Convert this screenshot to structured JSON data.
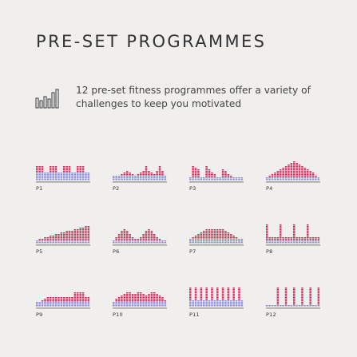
{
  "title": "PRE-SET PROGRAMMES",
  "intro": "12 pre-set fitness programmes offer a variety of challenges to keep you motivated",
  "icon": "bar-chart-icon",
  "colors": {
    "background": "#f0efed",
    "intensity": "#c1355a",
    "base": "#8c92c9",
    "baseline": "#555555"
  },
  "programmes": [
    {
      "label": "P1",
      "base_levels": [
        5,
        5,
        5,
        5,
        5,
        5,
        5,
        5,
        5,
        5,
        5,
        5,
        5,
        5,
        5,
        5,
        5,
        5,
        5,
        5
      ],
      "levels": [
        9,
        9,
        9,
        5,
        5,
        9,
        9,
        9,
        5,
        5,
        9,
        9,
        9,
        5,
        5,
        9,
        9,
        9,
        5,
        5
      ]
    },
    {
      "label": "P2",
      "base_levels": [
        3,
        3,
        3,
        3,
        3,
        3,
        3,
        3,
        3,
        3,
        3,
        3,
        3,
        3,
        3,
        3,
        3,
        3,
        3,
        3
      ],
      "levels": [
        3,
        3,
        3,
        4,
        5,
        6,
        5,
        4,
        3,
        4,
        5,
        6,
        9,
        6,
        5,
        4,
        6,
        9,
        6,
        3
      ]
    },
    {
      "label": "P3",
      "base_levels": [
        2,
        2,
        2,
        2,
        2,
        2,
        2,
        2,
        2,
        2,
        2,
        2,
        2,
        2,
        2,
        2,
        2,
        2,
        2,
        2
      ],
      "levels": [
        2,
        9,
        8,
        7,
        2,
        2,
        9,
        7,
        5,
        4,
        2,
        2,
        7,
        6,
        4,
        3,
        2,
        2,
        2,
        2
      ]
    },
    {
      "label": "P4",
      "base_levels": [
        2,
        2,
        2,
        2,
        2,
        2,
        2,
        2,
        2,
        2,
        2,
        2,
        2,
        2,
        2,
        2,
        2,
        2,
        2,
        2
      ],
      "levels": [
        2,
        3,
        4,
        5,
        6,
        7,
        8,
        9,
        10,
        11,
        12,
        11,
        10,
        9,
        8,
        7,
        6,
        5,
        3,
        2
      ]
    },
    {
      "label": "P5",
      "base_levels": [
        2,
        2,
        2,
        2,
        2,
        2,
        2,
        2,
        2,
        2,
        2,
        2,
        2,
        2,
        2,
        2,
        2,
        2,
        2,
        2
      ],
      "levels": [
        2,
        3,
        3,
        4,
        4,
        5,
        5,
        6,
        6,
        7,
        7,
        8,
        8,
        8,
        9,
        9,
        10,
        10,
        11,
        11
      ]
    },
    {
      "label": "P6",
      "base_levels": [
        2,
        2,
        2,
        2,
        2,
        2,
        2,
        2,
        2,
        2,
        2,
        2,
        2,
        2,
        2,
        2,
        2,
        2,
        2,
        2
      ],
      "levels": [
        2,
        4,
        6,
        8,
        9,
        8,
        6,
        4,
        3,
        3,
        4,
        6,
        8,
        9,
        8,
        6,
        4,
        3,
        2,
        2
      ]
    },
    {
      "label": "P7",
      "base_levels": [
        3,
        3,
        3,
        3,
        3,
        3,
        3,
        3,
        3,
        3,
        3,
        3,
        3,
        3,
        3,
        3,
        3,
        3,
        3,
        3
      ],
      "levels": [
        3,
        4,
        5,
        6,
        7,
        8,
        9,
        9,
        9,
        9,
        9,
        9,
        9,
        8,
        7,
        6,
        5,
        4,
        3,
        3
      ]
    },
    {
      "label": "P8",
      "base_levels": [
        2,
        2,
        2,
        2,
        2,
        2,
        2,
        2,
        2,
        2,
        2,
        2,
        2,
        2,
        2,
        2,
        2,
        2,
        2,
        2
      ],
      "levels": [
        12,
        4,
        4,
        4,
        4,
        12,
        4,
        4,
        4,
        4,
        12,
        4,
        4,
        4,
        4,
        12,
        4,
        4,
        4,
        4
      ]
    },
    {
      "label": "P9",
      "base_levels": [
        3,
        3,
        3,
        3,
        3,
        3,
        3,
        3,
        3,
        3,
        3,
        3,
        3,
        3,
        3,
        3,
        3,
        3,
        3,
        3
      ],
      "levels": [
        3,
        3,
        4,
        5,
        6,
        6,
        6,
        6,
        6,
        6,
        6,
        6,
        6,
        6,
        9,
        9,
        9,
        9,
        6,
        6
      ]
    },
    {
      "label": "P10",
      "base_levels": [
        3,
        3,
        3,
        3,
        3,
        3,
        3,
        3,
        3,
        3,
        3,
        3,
        3,
        3,
        3,
        3,
        3,
        3,
        3,
        3
      ],
      "levels": [
        3,
        5,
        6,
        7,
        8,
        9,
        9,
        8,
        8,
        9,
        9,
        8,
        7,
        8,
        9,
        9,
        8,
        7,
        6,
        4
      ]
    },
    {
      "label": "P11",
      "base_levels": [
        4,
        4,
        4,
        4,
        4,
        4,
        4,
        4,
        4,
        4,
        4,
        4,
        4,
        4,
        4,
        4,
        4,
        4,
        4,
        4
      ],
      "levels": [
        12,
        4,
        12,
        4,
        12,
        4,
        12,
        4,
        12,
        4,
        12,
        4,
        12,
        4,
        12,
        4,
        12,
        4,
        12,
        4
      ]
    },
    {
      "label": "P12",
      "base_levels": [
        1,
        1,
        1,
        1,
        1,
        1,
        1,
        1,
        1,
        1,
        1,
        1,
        1,
        1,
        1,
        1,
        1,
        1,
        1,
        1
      ],
      "levels": [
        1,
        1,
        1,
        1,
        12,
        1,
        1,
        12,
        1,
        1,
        12,
        1,
        1,
        12,
        1,
        1,
        12,
        1,
        1,
        12
      ]
    }
  ]
}
